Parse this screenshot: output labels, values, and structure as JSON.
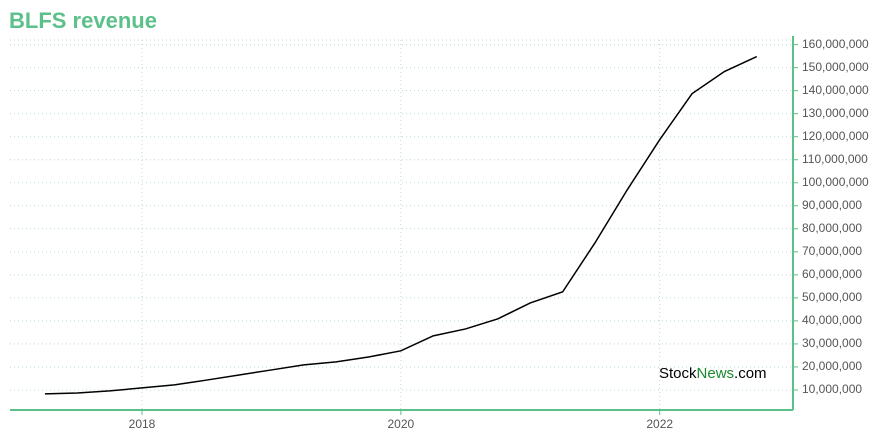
{
  "chart_data": {
    "type": "line",
    "title": "BLFS revenue",
    "watermark": [
      "Stock",
      "News",
      ".com"
    ],
    "x": [
      2017.25,
      2017.5,
      2017.75,
      2018,
      2018.25,
      2018.5,
      2018.75,
      2019,
      2019.25,
      2019.5,
      2019.75,
      2020,
      2020.25,
      2020.5,
      2020.75,
      2021,
      2021.25,
      2021.5,
      2021.75,
      2022,
      2022.25,
      2022.5,
      2022.75
    ],
    "series": [
      {
        "color": "#000000",
        "values": [
          8300000,
          8700000,
          9600000,
          10900000,
          12200000,
          14300000,
          16500000,
          18700000,
          20900000,
          22200000,
          24300000,
          27000000,
          33500000,
          36500000,
          40900000,
          47800000,
          52600000,
          73900000,
          97000000,
          118700000,
          138700000,
          148300000,
          154800000
        ]
      }
    ],
    "xlim": [
      2016.98,
      2023.03
    ],
    "xticks": [
      2018,
      2020,
      2022
    ],
    "ylim": [
      1300000,
      162000000
    ],
    "yticks": [
      {
        "value": 10000000,
        "label": "10,000,000"
      },
      {
        "value": 20000000,
        "label": "20,000,000"
      },
      {
        "value": 30000000,
        "label": "30,000,000"
      },
      {
        "value": 40000000,
        "label": "40,000,000"
      },
      {
        "value": 50000000,
        "label": "50,000,000"
      },
      {
        "value": 60000000,
        "label": "60,000,000"
      },
      {
        "value": 70000000,
        "label": "70,000,000"
      },
      {
        "value": 80000000,
        "label": "80,000,000"
      },
      {
        "value": 90000000,
        "label": "90,000,000"
      },
      {
        "value": 100000000,
        "label": "100,000,000"
      },
      {
        "value": 110000000,
        "label": "110,000,000"
      },
      {
        "value": 120000000,
        "label": "120,000,000"
      },
      {
        "value": 130000000,
        "label": "130,000,000"
      },
      {
        "value": 140000000,
        "label": "140,000,000"
      },
      {
        "value": 150000000,
        "label": "150,000,000"
      },
      {
        "value": 160000000,
        "label": "160,000,000"
      }
    ],
    "grid": true,
    "axis_color": "#5cc08a"
  }
}
